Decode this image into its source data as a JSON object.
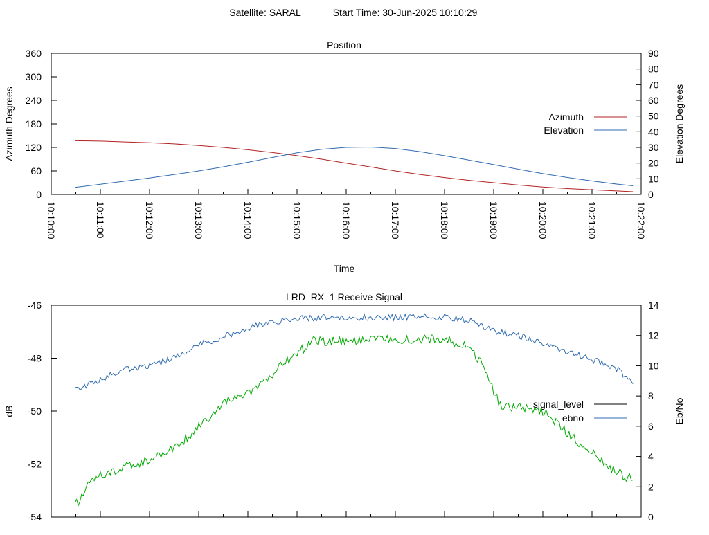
{
  "header": {
    "satellite": "Satellite: SARAL",
    "start_time": "Start Time: 30-Jun-2025 10:10:29"
  },
  "chart_data": [
    {
      "type": "line",
      "title": "Position",
      "xlabel": "Time",
      "ylabel": "Azimuth Degrees",
      "y2label": "Elevation Degrees",
      "x_tick_labels": [
        "10:10:00",
        "10:11:00",
        "10:12:00",
        "10:13:00",
        "10:14:00",
        "10:15:00",
        "10:16:00",
        "10:17:00",
        "10:18:00",
        "10:19:00",
        "10:20:00",
        "10:21:00",
        "10:22:00"
      ],
      "xlim": [
        "10:10:00",
        "10:22:00"
      ],
      "ylim": [
        0,
        360
      ],
      "y_ticks": [
        0,
        60,
        120,
        180,
        240,
        300,
        360
      ],
      "y2lim": [
        0,
        90
      ],
      "y2_ticks": [
        0,
        10,
        20,
        30,
        40,
        50,
        60,
        70,
        80,
        90
      ],
      "grid": false,
      "legend_position": "right",
      "series": [
        {
          "name": "Azimuth",
          "axis": "left",
          "color": "#b22222",
          "points": [
            [
              "10:10:29",
              137
            ],
            [
              "10:11:00",
              136
            ],
            [
              "10:11:30",
              134
            ],
            [
              "10:12:00",
              132
            ],
            [
              "10:12:30",
              129
            ],
            [
              "10:13:00",
              125
            ],
            [
              "10:13:30",
              120
            ],
            [
              "10:14:00",
              114
            ],
            [
              "10:14:30",
              107
            ],
            [
              "10:15:00",
              99
            ],
            [
              "10:15:30",
              90
            ],
            [
              "10:16:00",
              80
            ],
            [
              "10:16:30",
              70
            ],
            [
              "10:17:00",
              60
            ],
            [
              "10:17:30",
              51
            ],
            [
              "10:18:00",
              43
            ],
            [
              "10:18:30",
              36
            ],
            [
              "10:19:00",
              30
            ],
            [
              "10:19:30",
              24
            ],
            [
              "10:20:00",
              19
            ],
            [
              "10:20:30",
              15
            ],
            [
              "10:21:00",
              12
            ],
            [
              "10:21:30",
              9
            ],
            [
              "10:21:50",
              7
            ]
          ]
        },
        {
          "name": "Elevation",
          "axis": "right",
          "color": "#2f6bb0",
          "points": [
            [
              "10:10:29",
              4.5
            ],
            [
              "10:11:00",
              6.5
            ],
            [
              "10:11:30",
              8.5
            ],
            [
              "10:12:00",
              10.5
            ],
            [
              "10:12:30",
              12.7
            ],
            [
              "10:13:00",
              15.0
            ],
            [
              "10:13:30",
              17.6
            ],
            [
              "10:14:00",
              20.5
            ],
            [
              "10:14:30",
              23.6
            ],
            [
              "10:15:00",
              26.6
            ],
            [
              "10:15:30",
              28.8
            ],
            [
              "10:16:00",
              30.0
            ],
            [
              "10:16:30",
              30.2
            ],
            [
              "10:17:00",
              29.3
            ],
            [
              "10:17:30",
              27.3
            ],
            [
              "10:18:00",
              24.7
            ],
            [
              "10:18:30",
              21.9
            ],
            [
              "10:19:00",
              19.0
            ],
            [
              "10:19:30",
              16.1
            ],
            [
              "10:20:00",
              13.3
            ],
            [
              "10:20:30",
              10.8
            ],
            [
              "10:21:00",
              8.6
            ],
            [
              "10:21:30",
              6.6
            ],
            [
              "10:21:50",
              5.5
            ]
          ]
        }
      ]
    },
    {
      "type": "line",
      "title": "LRD_RX_1 Receive Signal",
      "ylabel": "dB",
      "y2label": "Eb/No",
      "xlim": [
        "10:10:00",
        "10:22:00"
      ],
      "ylim": [
        -54,
        -46
      ],
      "y_ticks": [
        -54,
        -52,
        -50,
        -48,
        -46
      ],
      "y2lim": [
        0,
        14
      ],
      "y2_ticks": [
        0,
        2,
        4,
        6,
        8,
        10,
        12,
        14
      ],
      "grid": false,
      "legend_position": "right",
      "series": [
        {
          "name": "signal_level",
          "axis": "left",
          "color": "#00aa00",
          "legend_color": "#000000",
          "points": [
            [
              "10:10:29",
              -53.6
            ],
            [
              "10:10:45",
              -52.8
            ],
            [
              "10:11:00",
              -52.4
            ],
            [
              "10:11:30",
              -52.1
            ],
            [
              "10:12:00",
              -51.9
            ],
            [
              "10:12:30",
              -51.4
            ],
            [
              "10:13:00",
              -50.6
            ],
            [
              "10:13:30",
              -49.7
            ],
            [
              "10:14:00",
              -49.3
            ],
            [
              "10:14:20",
              -48.9
            ],
            [
              "10:14:40",
              -48.3
            ],
            [
              "10:15:00",
              -47.8
            ],
            [
              "10:15:20",
              -47.35
            ],
            [
              "10:16:00",
              -47.35
            ],
            [
              "10:17:00",
              -47.3
            ],
            [
              "10:17:30",
              -47.25
            ],
            [
              "10:18:00",
              -47.3
            ],
            [
              "10:18:30",
              -47.6
            ],
            [
              "10:18:50",
              -48.4
            ],
            [
              "10:19:00",
              -49.3
            ],
            [
              "10:19:10",
              -49.9
            ],
            [
              "10:19:30",
              -49.8
            ],
            [
              "10:20:00",
              -50.0
            ],
            [
              "10:20:30",
              -50.8
            ],
            [
              "10:21:00",
              -51.6
            ],
            [
              "10:21:30",
              -52.3
            ],
            [
              "10:21:50",
              -52.6
            ]
          ]
        },
        {
          "name": "ebno",
          "axis": "right",
          "color": "#2f6bb0",
          "points": [
            [
              "10:10:29",
              8.4
            ],
            [
              "10:11:00",
              9.1
            ],
            [
              "10:11:30",
              9.7
            ],
            [
              "10:12:00",
              10.0
            ],
            [
              "10:12:30",
              10.5
            ],
            [
              "10:13:00",
              11.4
            ],
            [
              "10:13:30",
              11.9
            ],
            [
              "10:14:00",
              12.5
            ],
            [
              "10:14:30",
              12.9
            ],
            [
              "10:15:00",
              13.1
            ],
            [
              "10:15:30",
              13.2
            ],
            [
              "10:16:00",
              13.2
            ],
            [
              "10:16:30",
              13.2
            ],
            [
              "10:17:00",
              13.2
            ],
            [
              "10:17:30",
              13.25
            ],
            [
              "10:18:00",
              13.2
            ],
            [
              "10:18:30",
              13.0
            ],
            [
              "10:19:00",
              12.3
            ],
            [
              "10:19:30",
              12.0
            ],
            [
              "10:20:00",
              11.5
            ],
            [
              "10:20:30",
              10.9
            ],
            [
              "10:21:00",
              10.4
            ],
            [
              "10:21:30",
              9.8
            ],
            [
              "10:21:50",
              8.8
            ]
          ]
        }
      ]
    }
  ]
}
